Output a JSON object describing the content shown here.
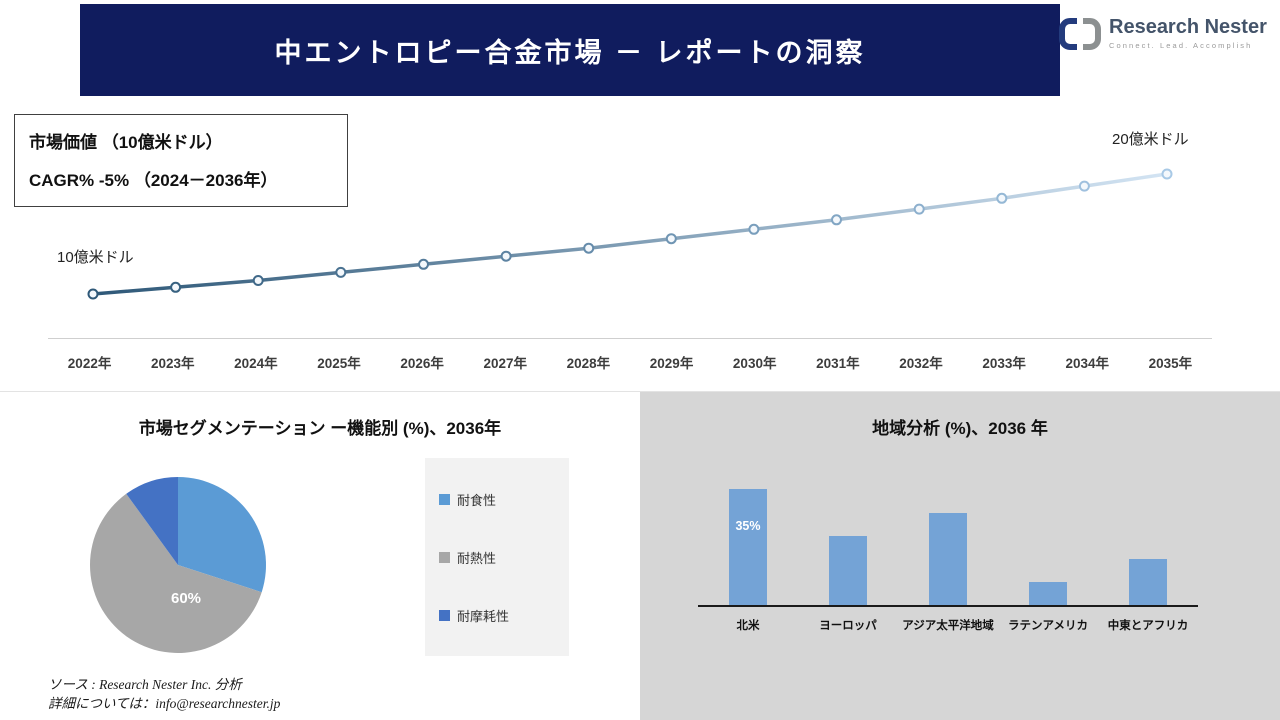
{
  "header": {
    "title": "中エントロピー合金市場 － レポートの洞察",
    "brand": {
      "name": "Research Nester",
      "tagline": "Connect. Lead. Accomplish"
    }
  },
  "colors": {
    "header_bg": "#101C5E",
    "panel_bg": "#D6D6D6",
    "line_start": "#2E5878",
    "line_end": "#D3E4F3",
    "marker_start": "#2E5878",
    "marker_end": "#A8C9E6",
    "bar_color": "#74A3D6",
    "pie_blue": "#5B9BD5",
    "pie_gray": "#A7A7A7",
    "pie_dark_blue": "#4472C4"
  },
  "chart_data": [
    {
      "type": "line",
      "title": "市場価値 （10億米ドル）",
      "subtitle": "CAGR% -5% （2024－2036年）",
      "x": [
        "2022年",
        "2023年",
        "2024年",
        "2025年",
        "2026年",
        "2027年",
        "2028年",
        "2029年",
        "2030年",
        "2031年",
        "2032年",
        "2033年",
        "2034年",
        "2035年"
      ],
      "values": [
        10,
        10.5,
        11,
        11.6,
        12.2,
        12.8,
        13.4,
        14.1,
        14.8,
        15.5,
        16.3,
        17.1,
        18,
        18.9
      ],
      "start_annotation": "10億米ドル",
      "end_annotation": "20億米ドル",
      "ylabel": "10億米ドル",
      "ylim": [
        10,
        20
      ],
      "grid": false,
      "legend": "none"
    },
    {
      "type": "pie",
      "title": "市場セグメンテーション ー機能別 (%)、2036年",
      "slices": [
        {
          "label": "耐食性",
          "value": 30,
          "color": "#5B9BD5"
        },
        {
          "label": "耐熱性",
          "value": 60,
          "color": "#A7A7A7"
        },
        {
          "label": "耐摩耗性",
          "value": 10,
          "color": "#4472C4"
        }
      ],
      "shown_label": "60%",
      "legend_position": "right"
    },
    {
      "type": "bar",
      "title": "地域分析 (%)、2036 年",
      "categories": [
        "北米",
        "ヨーロッパ",
        "アジア太平洋地域",
        "ラテンアメリカ",
        "中東とアフリカ"
      ],
      "values": [
        35,
        21,
        28,
        7,
        14
      ],
      "shown_label": "35%",
      "ylim": [
        0,
        40
      ],
      "grid": false
    }
  ],
  "footer": {
    "source_line1": "ソース : Research Nester Inc. 分析",
    "source_line2": "詳細については：info@researchnester.jp"
  }
}
